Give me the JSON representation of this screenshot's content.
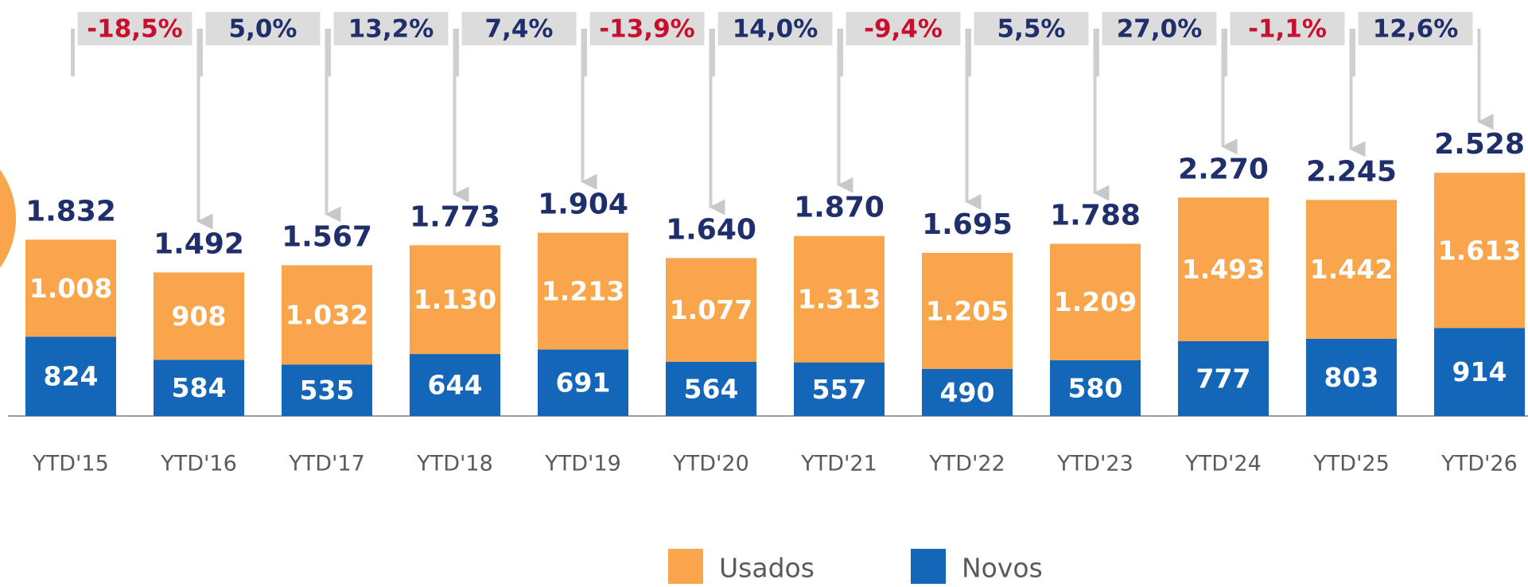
{
  "chart_data": {
    "type": "stacked_bar",
    "categories": [
      "YTD'15",
      "YTD'16",
      "YTD'17",
      "YTD'18",
      "YTD'19",
      "YTD'20",
      "YTD'21",
      "YTD'22",
      "YTD'23",
      "YTD'24",
      "YTD'25",
      "YTD'26"
    ],
    "series": [
      {
        "name": "Novos",
        "color": "#1466b8",
        "values": [
          824,
          584,
          535,
          644,
          691,
          564,
          557,
          490,
          580,
          777,
          803,
          914
        ]
      },
      {
        "name": "Usados",
        "color": "#f9a54b",
        "values": [
          1008,
          908,
          1032,
          1130,
          1213,
          1077,
          1313,
          1205,
          1209,
          1493,
          1442,
          1613
        ],
        "value_labels": [
          "1.008",
          "908",
          "1.032",
          "1.130",
          "1.213",
          "1.077",
          "1.313",
          "1.205",
          "1.209",
          "1.493",
          "1.442",
          "1.613"
        ]
      }
    ],
    "totals": {
      "values": [
        1832,
        1492,
        1567,
        1773,
        1904,
        1640,
        1870,
        1695,
        1788,
        2270,
        2245,
        2528
      ],
      "value_labels": [
        "1.832",
        "1.492",
        "1.567",
        "1.773",
        "1.904",
        "1.640",
        "1.870",
        "1.695",
        "1.788",
        "2.270",
        "2.245",
        "2.528"
      ]
    },
    "changes": {
      "values": [
        -18.5,
        5.0,
        13.2,
        7.4,
        -13.9,
        14.0,
        -9.4,
        5.5,
        27.0,
        -1.1,
        12.6
      ],
      "value_labels": [
        "-18,5%",
        "5,0%",
        "13,2%",
        "7,4%",
        "-13,9%",
        "14,0%",
        "-9,4%",
        "5,5%",
        "27,0%",
        "-1,1%",
        "12,6%"
      ],
      "positive_color": "#1f2f6b",
      "negative_color": "#c8102e"
    },
    "ylim": [
      0,
      3000
    ],
    "legend": "bottom"
  }
}
